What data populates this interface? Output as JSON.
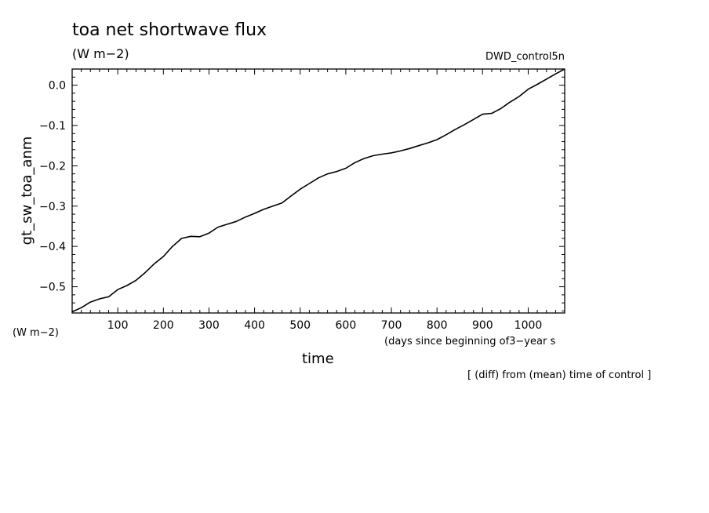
{
  "chart_data": {
    "type": "line",
    "title": "toa net shortwave flux",
    "title_unit": "(W m−2)",
    "run_label": "DWD_control5n",
    "ylabel": "gt_sw_toa_anm",
    "y_unit": "(W m−2)",
    "xlabel": "time",
    "x_unit": "(days since beginning of3−year s",
    "note": "[ (diff) from (mean) time of control ]",
    "xlim": [
      0,
      1080
    ],
    "ylim": [
      -0.565,
      0.04
    ],
    "x_ticks": [
      100,
      200,
      300,
      400,
      500,
      600,
      700,
      800,
      900,
      1000
    ],
    "x_tick_labels": [
      "100",
      "200",
      "300",
      "400",
      "500",
      "600",
      "700",
      "800",
      "900",
      "1000"
    ],
    "y_ticks": [
      0.0,
      -0.1,
      -0.2,
      -0.3,
      -0.4,
      -0.5
    ],
    "y_tick_labels": [
      "0.0",
      "−0.1",
      "−0.2",
      "−0.3",
      "−0.4",
      "−0.5"
    ],
    "grid": false,
    "series": [
      {
        "color": "#000000",
        "x": [
          0,
          20,
          40,
          60,
          80,
          100,
          120,
          140,
          160,
          180,
          200,
          220,
          240,
          260,
          280,
          300,
          320,
          340,
          360,
          380,
          400,
          420,
          440,
          460,
          480,
          500,
          520,
          540,
          560,
          580,
          600,
          620,
          640,
          660,
          680,
          700,
          720,
          740,
          760,
          780,
          800,
          820,
          840,
          860,
          880,
          900,
          920,
          940,
          960,
          980,
          1000,
          1020,
          1040,
          1060,
          1080
        ],
        "y": [
          -0.562,
          -0.552,
          -0.538,
          -0.53,
          -0.525,
          -0.507,
          -0.497,
          -0.484,
          -0.465,
          -0.443,
          -0.425,
          -0.4,
          -0.38,
          -0.375,
          -0.376,
          -0.367,
          -0.352,
          -0.345,
          -0.338,
          -0.327,
          -0.318,
          -0.308,
          -0.3,
          -0.292,
          -0.275,
          -0.258,
          -0.244,
          -0.23,
          -0.22,
          -0.214,
          -0.206,
          -0.192,
          -0.182,
          -0.175,
          -0.171,
          -0.168,
          -0.163,
          -0.157,
          -0.15,
          -0.143,
          -0.135,
          -0.123,
          -0.11,
          -0.098,
          -0.085,
          -0.072,
          -0.07,
          -0.058,
          -0.042,
          -0.028,
          -0.01,
          0.002,
          0.015,
          0.028,
          0.04
        ]
      }
    ]
  }
}
